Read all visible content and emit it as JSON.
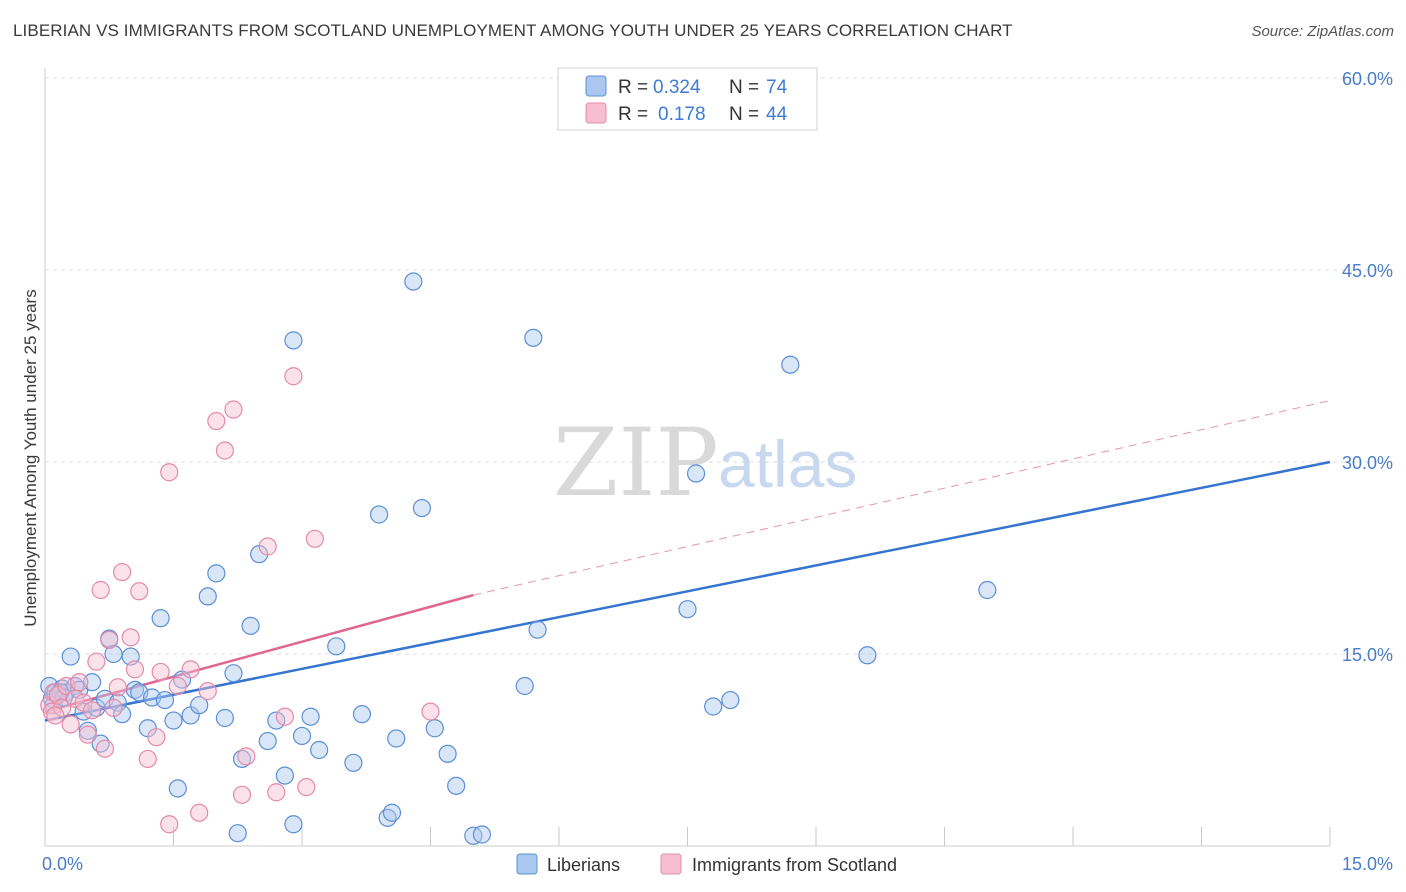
{
  "title": "LIBERIAN VS IMMIGRANTS FROM SCOTLAND UNEMPLOYMENT AMONG YOUTH UNDER 25 YEARS CORRELATION CHART",
  "source": "Source: ZipAtlas.com",
  "watermark": {
    "zip": "ZIP",
    "atlas": "atlas"
  },
  "colors": {
    "blue_fill": "#aac8ef",
    "blue_stroke": "#5b8fd6",
    "blue_line": "#3574cf",
    "pink_fill": "#f6bfd1",
    "pink_stroke": "#e48aa8",
    "pink_line": "#e0658f",
    "tick_text": "#4a7cc9",
    "grid": "#dddddd"
  },
  "legend": {
    "row1": {
      "r_label": "R = ",
      "r_value": "0.324",
      "n_label": "N = ",
      "n_value": "74"
    },
    "row2": {
      "r_label": "R = ",
      "r_value": "0.178",
      "n_label": "N = ",
      "n_value": "44"
    }
  },
  "chart_data": {
    "type": "scatter",
    "title": "LIBERIAN VS IMMIGRANTS FROM SCOTLAND UNEMPLOYMENT AMONG YOUTH UNDER 25 YEARS CORRELATION CHART",
    "xlabel": "",
    "ylabel": "Unemployment Among Youth under 25 years",
    "xlim": [
      0,
      15
    ],
    "ylim": [
      0,
      60
    ],
    "x_tick_labels": [
      {
        "value": 0,
        "label": "0.0%"
      },
      {
        "value": 15,
        "label": "15.0%"
      }
    ],
    "y_tick_labels": [
      {
        "value": 15,
        "label": "15.0%"
      },
      {
        "value": 30,
        "label": "30.0%"
      },
      {
        "value": 45,
        "label": "45.0%"
      },
      {
        "value": 60,
        "label": "60.0%"
      }
    ],
    "y_gridlines": [
      15,
      30,
      45,
      60
    ],
    "x_minor_ticks": [
      1.5,
      3.0,
      4.5,
      6.0,
      7.5,
      9.0,
      10.5,
      12.0,
      13.5,
      15.0
    ],
    "legend_position": "bottom",
    "series": [
      {
        "name": "Liberians",
        "color": "#5b8fd6",
        "R": 0.324,
        "N": 74,
        "trend": {
          "x0": 0,
          "y0": 9.8,
          "x1": 15,
          "y1": 30.0,
          "dashed_extension": false
        },
        "points": [
          [
            0.05,
            12.5
          ],
          [
            0.08,
            11.5
          ],
          [
            0.1,
            11.0
          ],
          [
            0.12,
            12.0
          ],
          [
            0.15,
            11.8
          ],
          [
            0.2,
            12.3
          ],
          [
            0.25,
            12.0
          ],
          [
            0.3,
            14.8
          ],
          [
            0.35,
            12.5
          ],
          [
            0.4,
            12.2
          ],
          [
            0.45,
            10.5
          ],
          [
            0.5,
            9.0
          ],
          [
            0.55,
            12.8
          ],
          [
            0.6,
            10.8
          ],
          [
            0.65,
            8.0
          ],
          [
            0.7,
            11.5
          ],
          [
            0.75,
            16.2
          ],
          [
            0.8,
            15.0
          ],
          [
            0.85,
            11.2
          ],
          [
            0.9,
            10.3
          ],
          [
            1.0,
            14.8
          ],
          [
            1.05,
            12.2
          ],
          [
            1.1,
            12.0
          ],
          [
            1.2,
            9.2
          ],
          [
            1.25,
            11.6
          ],
          [
            1.35,
            17.8
          ],
          [
            1.4,
            11.4
          ],
          [
            1.5,
            9.8
          ],
          [
            1.6,
            13.0
          ],
          [
            1.7,
            10.2
          ],
          [
            1.8,
            11.0
          ],
          [
            1.9,
            19.5
          ],
          [
            2.0,
            21.3
          ],
          [
            2.1,
            10.0
          ],
          [
            2.2,
            13.5
          ],
          [
            2.3,
            6.8
          ],
          [
            2.4,
            17.2
          ],
          [
            2.5,
            22.8
          ],
          [
            2.6,
            8.2
          ],
          [
            2.7,
            9.8
          ],
          [
            2.8,
            5.5
          ],
          [
            2.9,
            39.5
          ],
          [
            3.0,
            8.6
          ],
          [
            3.1,
            10.1
          ],
          [
            3.2,
            7.5
          ],
          [
            3.4,
            15.6
          ],
          [
            3.6,
            6.5
          ],
          [
            3.7,
            10.3
          ],
          [
            3.9,
            25.9
          ],
          [
            4.0,
            2.2
          ],
          [
            4.1,
            8.4
          ],
          [
            4.3,
            44.1
          ],
          [
            4.4,
            26.4
          ],
          [
            4.55,
            9.2
          ],
          [
            4.7,
            7.2
          ],
          [
            4.8,
            4.7
          ],
          [
            5.0,
            0.8
          ],
          [
            5.1,
            0.9
          ],
          [
            5.6,
            12.5
          ],
          [
            5.7,
            39.7
          ],
          [
            5.75,
            16.9
          ],
          [
            7.5,
            18.5
          ],
          [
            7.6,
            29.1
          ],
          [
            7.8,
            10.9
          ],
          [
            8.0,
            11.4
          ],
          [
            8.7,
            37.6
          ],
          [
            9.6,
            14.9
          ],
          [
            11.0,
            20.0
          ],
          [
            0.18,
            12.0
          ],
          [
            0.22,
            11.6
          ],
          [
            1.55,
            4.5
          ],
          [
            2.25,
            1.0
          ],
          [
            2.9,
            1.7
          ],
          [
            4.05,
            2.6
          ]
        ]
      },
      {
        "name": "Immigrants from Scotland",
        "color": "#e48aa8",
        "R": 0.178,
        "N": 44,
        "trend": {
          "x0": 0,
          "y0": 10.5,
          "x1": 5.0,
          "y1": 19.6,
          "dashed_extension": true,
          "dashed_to": {
            "x": 15,
            "y": 34.8
          }
        },
        "points": [
          [
            0.05,
            11.0
          ],
          [
            0.08,
            10.5
          ],
          [
            0.1,
            12.0
          ],
          [
            0.15,
            11.8
          ],
          [
            0.2,
            10.8
          ],
          [
            0.25,
            12.5
          ],
          [
            0.3,
            9.5
          ],
          [
            0.35,
            11.5
          ],
          [
            0.4,
            12.8
          ],
          [
            0.45,
            11.2
          ],
          [
            0.5,
            8.7
          ],
          [
            0.55,
            10.6
          ],
          [
            0.6,
            14.4
          ],
          [
            0.65,
            20.0
          ],
          [
            0.7,
            7.6
          ],
          [
            0.75,
            16.1
          ],
          [
            0.8,
            10.8
          ],
          [
            0.85,
            12.4
          ],
          [
            0.9,
            21.4
          ],
          [
            1.0,
            16.3
          ],
          [
            1.05,
            13.8
          ],
          [
            1.1,
            19.9
          ],
          [
            1.2,
            6.8
          ],
          [
            1.3,
            8.5
          ],
          [
            1.35,
            13.6
          ],
          [
            1.45,
            29.2
          ],
          [
            1.55,
            12.5
          ],
          [
            1.7,
            13.8
          ],
          [
            1.8,
            2.6
          ],
          [
            1.9,
            12.1
          ],
          [
            2.0,
            33.2
          ],
          [
            2.1,
            30.9
          ],
          [
            2.2,
            34.1
          ],
          [
            2.3,
            4.0
          ],
          [
            2.35,
            7.0
          ],
          [
            2.6,
            23.4
          ],
          [
            2.7,
            4.2
          ],
          [
            2.8,
            10.1
          ],
          [
            2.9,
            36.7
          ],
          [
            3.05,
            4.6
          ],
          [
            3.15,
            24.0
          ],
          [
            4.5,
            10.5
          ],
          [
            1.45,
            1.7
          ],
          [
            0.12,
            10.2
          ]
        ]
      }
    ]
  },
  "bottom_legend": [
    {
      "label": "Liberians"
    },
    {
      "label": "Immigrants from Scotland"
    }
  ]
}
